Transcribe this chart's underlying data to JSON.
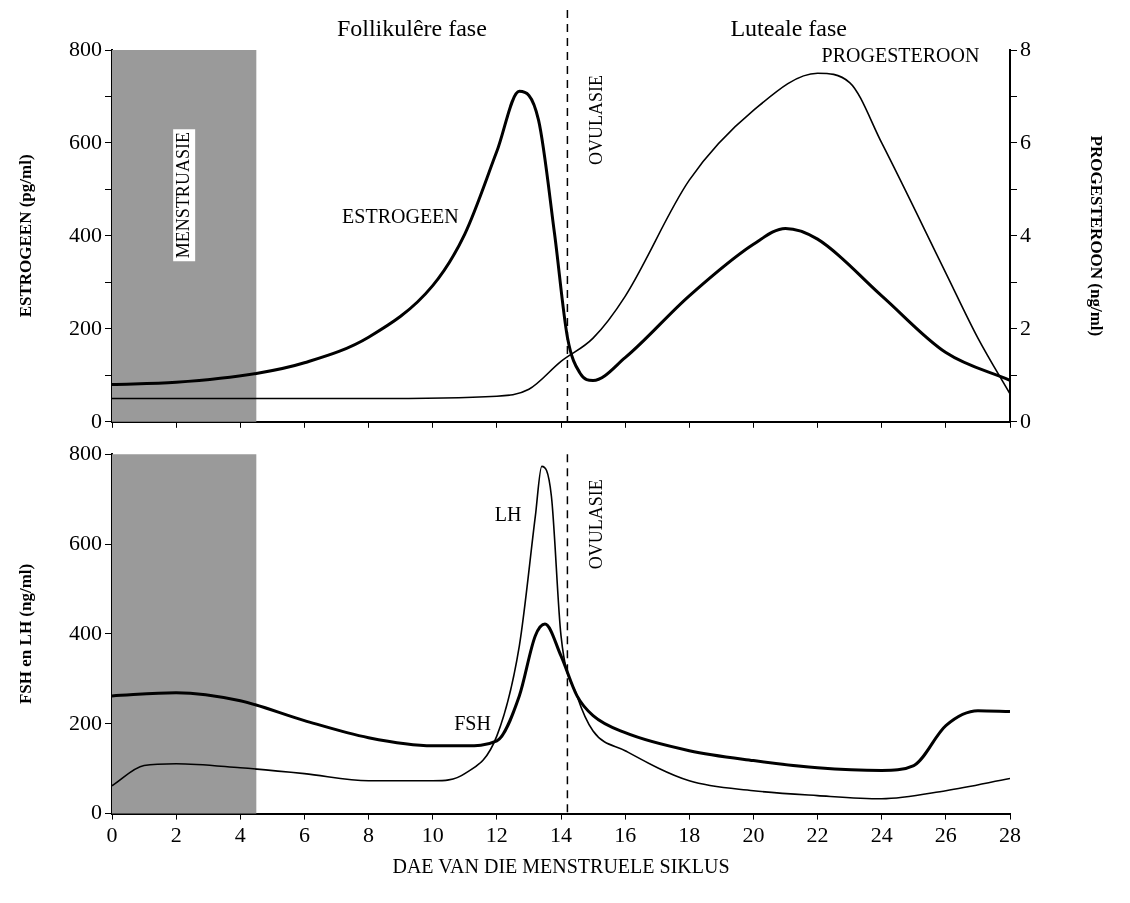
{
  "chart_data": [
    {
      "type": "line",
      "annotations": [
        "Follikulêre fase",
        "Luteale fase"
      ],
      "ylabel": "ESTROGEEN (pg/ml)",
      "y2label": "PROGESTEROON (ng/ml)",
      "xlim": [
        0,
        28
      ],
      "xticks": [
        0,
        2,
        4,
        6,
        8,
        10,
        12,
        14,
        16,
        18,
        20,
        22,
        24,
        26,
        28
      ],
      "ylim": [
        0,
        800
      ],
      "yticks": [
        0,
        {
          "value": 100,
          "label": null
        },
        200,
        {
          "value": 300,
          "label": null
        },
        400,
        {
          "value": 500,
          "label": null
        },
        600,
        {
          "value": 700,
          "label": null
        },
        800
      ],
      "y2lim": [
        0,
        8
      ],
      "y2ticks": [
        0,
        {
          "value": 1,
          "label": null
        },
        2,
        {
          "value": 3,
          "label": null
        },
        4,
        {
          "value": 5,
          "label": null
        },
        6,
        {
          "value": 7,
          "label": null
        },
        8
      ],
      "tick_labels": "y",
      "marker": "none",
      "grid": false,
      "bands": [
        {
          "axis": "x",
          "from": 0,
          "to": 4.5,
          "label": "MENSTRUASIE",
          "color": "#9a9a9a"
        }
      ],
      "ref_lines": [
        {
          "axis": "x",
          "value": 14.2,
          "label": "OVULASIE",
          "line_style": "dashed"
        }
      ],
      "series": [
        {
          "name": "ESTROGEEN",
          "color": "#000000",
          "x": [
            0,
            2,
            4.5,
            6,
            8,
            10,
            11,
            12,
            12.7,
            13.3,
            13.8,
            14.2,
            14.6,
            15,
            16,
            18,
            20,
            21,
            22,
            24,
            26,
            28
          ],
          "values": [
            80,
            85,
            104,
            127,
            182,
            293,
            404,
            582,
            711,
            649,
            404,
            182,
            104,
            89,
            138,
            271,
            382,
            416,
            393,
            271,
            149,
            89
          ]
        },
        {
          "name": "PROGESTEROON",
          "color": "#000000",
          "axis": "y2",
          "x": [
            0,
            4,
            8,
            12,
            13,
            14,
            15,
            16,
            18,
            20,
            22,
            23,
            24,
            26,
            27,
            28
          ],
          "values": [
            0.5,
            0.5,
            0.5,
            0.55,
            0.7,
            1.3,
            1.8,
            2.7,
            5.2,
            6.7,
            7.5,
            7.3,
            6,
            3.2,
            1.8,
            0.6
          ]
        }
      ]
    },
    {
      "type": "line",
      "xlabel": "DAE VAN DIE MENSTRUELE SIKLUS",
      "ylabel": "FSH en LH (ng/ml)",
      "xlim": [
        0,
        28
      ],
      "xticks": [
        0,
        2,
        4,
        6,
        8,
        10,
        12,
        14,
        16,
        18,
        20,
        22,
        24,
        26,
        28
      ],
      "ylim": [
        0,
        800
      ],
      "yticks": [
        0,
        200,
        400,
        600,
        800
      ],
      "marker": "none",
      "grid": false,
      "bands": [
        {
          "axis": "x",
          "from": 0,
          "to": 4.5,
          "color": "#9a9a9a"
        }
      ],
      "ref_lines": [
        {
          "axis": "x",
          "value": 14.2,
          "label": "OVULASIE",
          "line_style": "dashed"
        }
      ],
      "series": [
        {
          "name": "FSH",
          "color": "#000000",
          "x": [
            0,
            2,
            4,
            6,
            8,
            10,
            11,
            12,
            12.7,
            13.2,
            13.5,
            14,
            14.5,
            15,
            16,
            18,
            20,
            22,
            24,
            25,
            26,
            27,
            28
          ],
          "values": [
            262,
            269,
            251,
            207,
            169,
            151,
            151,
            162,
            262,
            396,
            422,
            351,
            262,
            218,
            180,
            140,
            118,
            102,
            96,
            107,
            196,
            229,
            227
          ]
        },
        {
          "name": "LH",
          "color": "#000000",
          "x": [
            0,
            1,
            2,
            4,
            6,
            8,
            10,
            11,
            12,
            12.7,
            13.2,
            13.4,
            13.7,
            14,
            14.5,
            15,
            16,
            18,
            20,
            22,
            24,
            26,
            28
          ],
          "values": [
            62,
            107,
            111,
            102,
            89,
            73,
            73,
            89,
            173,
            373,
            662,
            773,
            707,
            396,
            262,
            184,
            140,
            73,
            51,
            40,
            33,
            51,
            78
          ]
        }
      ]
    }
  ]
}
